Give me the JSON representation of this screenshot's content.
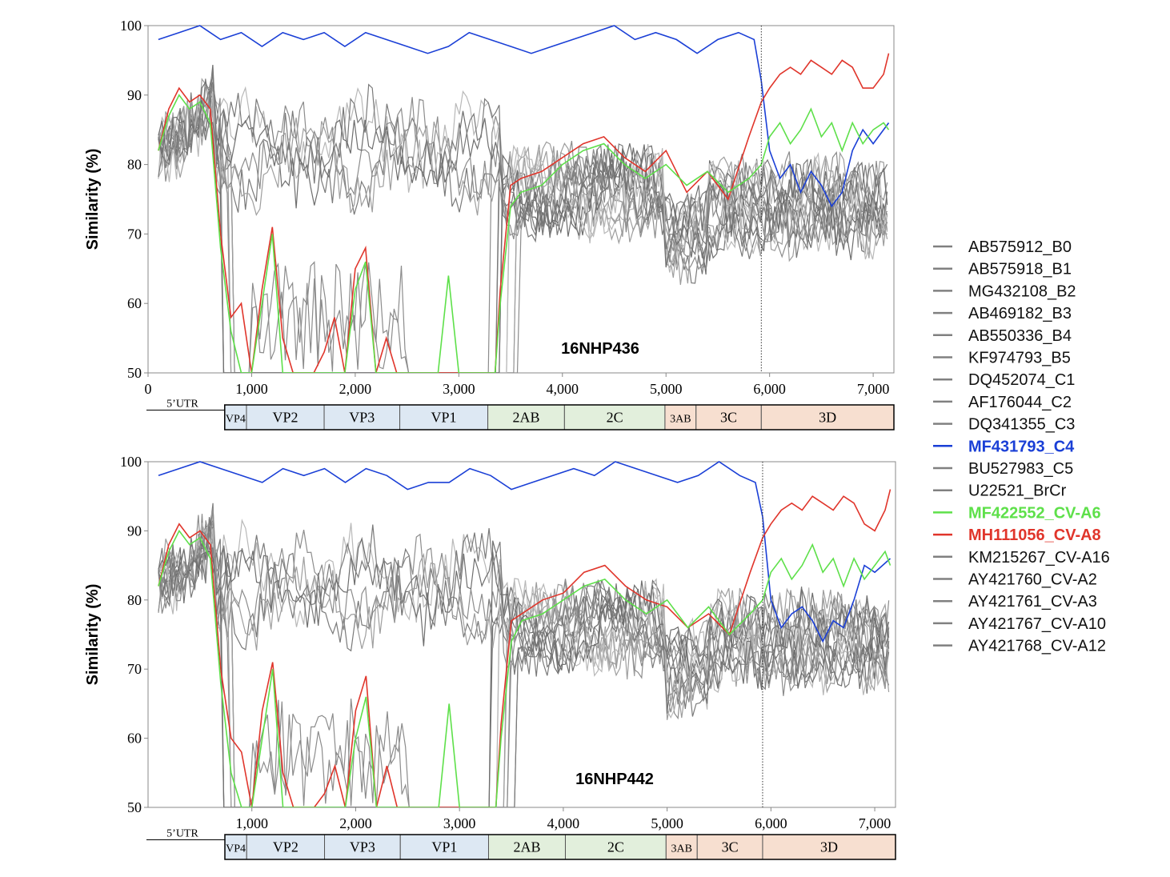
{
  "chart_data": [
    {
      "type": "line",
      "sample": "16NHP436",
      "ylabel": "Similarity  (%)",
      "xlabel": "",
      "ylim": [
        50,
        100
      ],
      "xlim": [
        0,
        7200
      ],
      "yticks": [
        "100",
        "90",
        "80",
        "70",
        "60",
        "50"
      ],
      "xticks": [
        "0",
        "1,000",
        "2,000",
        "3,000",
        "4,000",
        "5,000",
        "6,000",
        "7,000"
      ],
      "breakpoint": 5920,
      "series": [
        {
          "ref": "MF431793_C4",
          "color": "#1a3fd6",
          "x": [
            100,
            300,
            500,
            700,
            900,
            1100,
            1300,
            1500,
            1700,
            1900,
            2100,
            2300,
            2500,
            2700,
            2900,
            3100,
            3300,
            3500,
            3700,
            3900,
            4100,
            4300,
            4500,
            4700,
            4900,
            5100,
            5300,
            5500,
            5700,
            5850,
            5920,
            6000,
            6100,
            6200,
            6300,
            6400,
            6500,
            6600,
            6700,
            6800,
            6900,
            7000,
            7150
          ],
          "y": [
            98,
            99,
            100,
            98,
            99,
            97,
            99,
            98,
            99,
            97,
            99,
            98,
            97,
            96,
            97,
            99,
            98,
            97,
            96,
            97,
            98,
            99,
            100,
            98,
            99,
            98,
            96,
            98,
            99,
            98,
            92,
            82,
            78,
            80,
            76,
            79,
            77,
            74,
            76,
            82,
            85,
            83,
            86
          ]
        },
        {
          "ref": "MH111056_CV-A8",
          "color": "#e0352b",
          "x": [
            100,
            200,
            300,
            400,
            500,
            600,
            700,
            800,
            900,
            1000,
            1100,
            1200,
            1300,
            1400,
            1500,
            1600,
            1700,
            1800,
            1900,
            2000,
            2100,
            2200,
            2300,
            2400,
            2600,
            2800,
            3000,
            3100,
            3200,
            3300,
            3350,
            3400,
            3500,
            3600,
            3800,
            4000,
            4200,
            4400,
            4600,
            4800,
            5000,
            5200,
            5400,
            5600,
            5800,
            5920,
            6000,
            6100,
            6200,
            6300,
            6400,
            6500,
            6600,
            6700,
            6800,
            6900,
            7000,
            7100,
            7150
          ],
          "y": [
            82,
            88,
            91,
            89,
            90,
            88,
            70,
            58,
            60,
            50,
            62,
            71,
            55,
            50,
            50,
            50,
            53,
            58,
            50,
            65,
            68,
            50,
            55,
            50,
            50,
            50,
            50,
            50,
            50,
            50,
            50,
            62,
            77,
            78,
            79,
            81,
            83,
            84,
            81,
            79,
            82,
            76,
            79,
            75,
            84,
            89,
            91,
            93,
            94,
            93,
            95,
            94,
            93,
            95,
            94,
            91,
            91,
            93,
            96
          ]
        },
        {
          "ref": "MF422552_CV-A6",
          "color": "#5ee04a",
          "x": [
            100,
            200,
            300,
            400,
            500,
            600,
            700,
            800,
            900,
            1000,
            1100,
            1200,
            1300,
            1400,
            1500,
            1600,
            1700,
            1800,
            1900,
            2000,
            2100,
            2200,
            2300,
            2400,
            2600,
            2800,
            2900,
            3000,
            3100,
            3200,
            3300,
            3350,
            3400,
            3500,
            3600,
            3800,
            4000,
            4200,
            4400,
            4600,
            4800,
            5000,
            5200,
            5400,
            5600,
            5800,
            5920,
            6000,
            6100,
            6200,
            6300,
            6400,
            6500,
            6600,
            6700,
            6800,
            6900,
            7000,
            7100,
            7150
          ],
          "y": [
            82,
            87,
            90,
            88,
            89,
            86,
            68,
            56,
            50,
            50,
            60,
            70,
            50,
            50,
            50,
            50,
            50,
            50,
            50,
            62,
            66,
            50,
            50,
            50,
            50,
            50,
            64,
            50,
            50,
            50,
            50,
            50,
            60,
            74,
            76,
            77,
            80,
            82,
            83,
            80,
            78,
            80,
            77,
            79,
            76,
            78,
            80,
            84,
            86,
            83,
            85,
            88,
            84,
            86,
            82,
            86,
            83,
            85,
            86,
            85
          ]
        }
      ],
      "grey_series": [
        "AB575912_B0",
        "AB575918_B1",
        "MG432108_B2",
        "AB469182_B3",
        "AB550336_B4",
        "KF974793_B5",
        "DQ452074_C1",
        "AF176044_C2",
        "DQ341355_C3",
        "BU527983_C5",
        "U22521_BrCr",
        "KM215267_CV-A16",
        "AY421760_CV-A2",
        "AY421761_CV-A3",
        "AY421767_CV-A10",
        "AY421768_CV-A12"
      ]
    },
    {
      "type": "line",
      "sample": "16NHP442",
      "ylabel": "Similarity  (%)",
      "xlabel": "",
      "ylim": [
        50,
        100
      ],
      "xlim": [
        0,
        7200
      ],
      "yticks": [
        "100",
        "90",
        "80",
        "70",
        "60",
        "50"
      ],
      "xticks": [
        "1,000",
        "2,000",
        "3,000",
        "4,000",
        "5,000",
        "6,000",
        "7,000"
      ],
      "breakpoint": 5920,
      "series": [
        {
          "ref": "MF431793_C4",
          "color": "#1a3fd6",
          "x": [
            100,
            300,
            500,
            700,
            900,
            1100,
            1300,
            1500,
            1700,
            1900,
            2100,
            2300,
            2500,
            2700,
            2900,
            3100,
            3300,
            3500,
            3700,
            3900,
            4100,
            4300,
            4500,
            4700,
            4900,
            5100,
            5300,
            5500,
            5700,
            5850,
            5920,
            6000,
            6100,
            6200,
            6300,
            6400,
            6500,
            6600,
            6700,
            6800,
            6900,
            7000,
            7150
          ],
          "y": [
            98,
            99,
            100,
            99,
            98,
            97,
            99,
            98,
            99,
            97,
            99,
            98,
            96,
            97,
            97,
            99,
            98,
            96,
            97,
            98,
            99,
            98,
            100,
            99,
            98,
            97,
            98,
            100,
            98,
            97,
            92,
            80,
            76,
            78,
            79,
            77,
            74,
            77,
            76,
            80,
            85,
            84,
            86
          ]
        },
        {
          "ref": "MH111056_CV-A8",
          "color": "#e0352b",
          "x": [
            100,
            200,
            300,
            400,
            500,
            600,
            700,
            800,
            900,
            1000,
            1100,
            1200,
            1300,
            1400,
            1500,
            1600,
            1700,
            1800,
            1900,
            2000,
            2100,
            2200,
            2300,
            2400,
            2600,
            2800,
            3000,
            3100,
            3200,
            3300,
            3350,
            3400,
            3500,
            3600,
            3800,
            4000,
            4200,
            4400,
            4600,
            4800,
            5000,
            5200,
            5400,
            5600,
            5800,
            5920,
            6000,
            6100,
            6200,
            6300,
            6400,
            6500,
            6600,
            6700,
            6800,
            6900,
            7000,
            7100,
            7150
          ],
          "y": [
            82,
            88,
            91,
            89,
            90,
            88,
            70,
            60,
            58,
            50,
            64,
            71,
            55,
            50,
            50,
            50,
            52,
            56,
            50,
            64,
            69,
            50,
            56,
            50,
            50,
            50,
            50,
            50,
            50,
            50,
            50,
            62,
            77,
            78,
            80,
            81,
            84,
            85,
            82,
            80,
            79,
            76,
            78,
            75,
            84,
            89,
            91,
            93,
            94,
            93,
            95,
            94,
            93,
            95,
            94,
            91,
            90,
            93,
            96
          ]
        },
        {
          "ref": "MF422552_CV-A6",
          "color": "#5ee04a",
          "x": [
            100,
            200,
            300,
            400,
            500,
            600,
            700,
            800,
            900,
            1000,
            1100,
            1200,
            1300,
            1400,
            1500,
            1600,
            1700,
            1800,
            1900,
            2000,
            2100,
            2200,
            2300,
            2400,
            2600,
            2800,
            2900,
            3000,
            3100,
            3200,
            3300,
            3350,
            3400,
            3500,
            3600,
            3800,
            4000,
            4200,
            4400,
            4600,
            4800,
            5000,
            5200,
            5400,
            5600,
            5800,
            5920,
            6000,
            6100,
            6200,
            6300,
            6400,
            6500,
            6600,
            6700,
            6800,
            6900,
            7000,
            7100,
            7150
          ],
          "y": [
            82,
            87,
            90,
            88,
            89,
            86,
            68,
            55,
            50,
            50,
            60,
            70,
            50,
            50,
            50,
            50,
            50,
            50,
            50,
            60,
            66,
            50,
            50,
            50,
            50,
            50,
            65,
            50,
            50,
            50,
            50,
            50,
            60,
            74,
            77,
            78,
            80,
            82,
            83,
            80,
            78,
            80,
            76,
            79,
            75,
            78,
            80,
            84,
            86,
            83,
            85,
            88,
            84,
            86,
            82,
            86,
            83,
            85,
            87,
            85
          ]
        }
      ],
      "grey_series": [
        "AB575912_B0",
        "AB575918_B1",
        "MG432108_B2",
        "AB469182_B3",
        "AB550336_B4",
        "KF974793_B5",
        "DQ452074_C1",
        "AF176044_C2",
        "DQ341355_C3",
        "BU527983_C5",
        "U22521_BrCr",
        "KM215267_CV-A16",
        "AY421760_CV-A2",
        "AY421761_CV-A3",
        "AY421767_CV-A10",
        "AY421768_CV-A12"
      ]
    }
  ],
  "genome_map": {
    "utr_label": "5’UTR",
    "regions": [
      {
        "name": "VP4",
        "start": 740,
        "end": 950,
        "color": "#dde8f3"
      },
      {
        "name": "VP2",
        "start": 950,
        "end": 1700,
        "color": "#dde8f3"
      },
      {
        "name": "VP3",
        "start": 1700,
        "end": 2430,
        "color": "#dde8f3"
      },
      {
        "name": "VP1",
        "start": 2430,
        "end": 3280,
        "color": "#dde8f3"
      },
      {
        "name": "2AB",
        "start": 3280,
        "end": 4020,
        "color": "#e2efdc"
      },
      {
        "name": "2C",
        "start": 4020,
        "end": 4990,
        "color": "#e2efdc"
      },
      {
        "name": "3AB",
        "start": 4990,
        "end": 5290,
        "color": "#f7dfd0"
      },
      {
        "name": "3C",
        "start": 5290,
        "end": 5920,
        "color": "#f7dfd0"
      },
      {
        "name": "3D",
        "start": 5920,
        "end": 7200,
        "color": "#f7dfd0"
      }
    ]
  },
  "legend": {
    "items": [
      {
        "label": "AB575912_B0",
        "color": "#808080",
        "bold": false
      },
      {
        "label": "AB575918_B1",
        "color": "#808080",
        "bold": false
      },
      {
        "label": "MG432108_B2",
        "color": "#808080",
        "bold": false
      },
      {
        "label": "AB469182_B3",
        "color": "#808080",
        "bold": false
      },
      {
        "label": "AB550336_B4",
        "color": "#808080",
        "bold": false
      },
      {
        "label": "KF974793_B5",
        "color": "#808080",
        "bold": false
      },
      {
        "label": "DQ452074_C1",
        "color": "#808080",
        "bold": false
      },
      {
        "label": "AF176044_C2",
        "color": "#808080",
        "bold": false
      },
      {
        "label": "DQ341355_C3",
        "color": "#808080",
        "bold": false
      },
      {
        "label": "MF431793_C4",
        "color": "#1a3fd6",
        "bold": true
      },
      {
        "label": "BU527983_C5",
        "color": "#808080",
        "bold": false
      },
      {
        "label": "U22521_BrCr",
        "color": "#808080",
        "bold": false
      },
      {
        "label": "MF422552_CV-A6",
        "color": "#5ee04a",
        "bold": true
      },
      {
        "label": "MH111056_CV-A8",
        "color": "#e0352b",
        "bold": true
      },
      {
        "label": "KM215267_CV-A16",
        "color": "#808080",
        "bold": false
      },
      {
        "label": "AY421760_CV-A2",
        "color": "#808080",
        "bold": false
      },
      {
        "label": "AY421761_CV-A3",
        "color": "#808080",
        "bold": false
      },
      {
        "label": "AY421767_CV-A10",
        "color": "#808080",
        "bold": false
      },
      {
        "label": "AY421768_CV-A12",
        "color": "#808080",
        "bold": false
      }
    ]
  }
}
